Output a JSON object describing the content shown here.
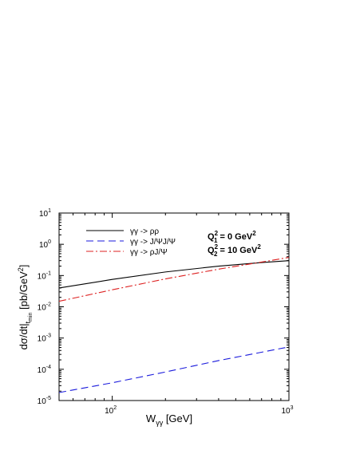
{
  "chart_data": {
    "type": "line",
    "title": "",
    "xscale": "log",
    "yscale": "log",
    "xlim": [
      50,
      1000
    ],
    "ylim": [
      1e-05,
      10
    ],
    "x_ticks": [
      {
        "value": 100,
        "base": "10",
        "exp": "2"
      },
      {
        "value": 1000,
        "base": "10",
        "exp": "3"
      }
    ],
    "y_ticks": [
      {
        "value": 1e-05,
        "base": "10",
        "exp": "-5"
      },
      {
        "value": 0.0001,
        "base": "10",
        "exp": "-4"
      },
      {
        "value": 0.001,
        "base": "10",
        "exp": "-3"
      },
      {
        "value": 0.01,
        "base": "10",
        "exp": "-2"
      },
      {
        "value": 0.1,
        "base": "10",
        "exp": "-1"
      },
      {
        "value": 1,
        "base": "10",
        "exp": "0"
      },
      {
        "value": 10,
        "base": "10",
        "exp": "1"
      }
    ],
    "xlabel": {
      "main": "W",
      "sub": "γγ",
      "unit": " [GeV]"
    },
    "ylabel": {
      "main": "dσ/dt|",
      "sub": "t",
      "subsub": "min",
      "unit": " [pb/GeV",
      "unit_sup": "2",
      "unit_end": "]"
    },
    "legend_placement": "top-left",
    "grid": false,
    "series": [
      {
        "name": "γγ -> ρρ",
        "color": "#000000",
        "dash": "solid",
        "points": [
          [
            50,
            0.04
          ],
          [
            100,
            0.075
          ],
          [
            200,
            0.13
          ],
          [
            400,
            0.2
          ],
          [
            700,
            0.26
          ],
          [
            1000,
            0.3
          ]
        ]
      },
      {
        "name": "γγ -> J/ΨJ/Ψ",
        "color": "#1a1adc",
        "dash": "dashed",
        "points": [
          [
            50,
            1.8e-05
          ],
          [
            100,
            3.7e-05
          ],
          [
            200,
            8.2e-05
          ],
          [
            400,
            0.00019
          ],
          [
            1000,
            0.00052
          ]
        ]
      },
      {
        "name": "γγ -> ρJ/Ψ",
        "color": "#dd2020",
        "dash": "dashdot",
        "points": [
          [
            50,
            0.015
          ],
          [
            100,
            0.035
          ],
          [
            200,
            0.078
          ],
          [
            400,
            0.16
          ],
          [
            700,
            0.27
          ],
          [
            1000,
            0.38
          ]
        ]
      }
    ],
    "annotations": [
      {
        "main": "Q",
        "sup": "2",
        "sub": "1",
        "rest": " = 0 GeV",
        "rest_sup": "2"
      },
      {
        "main": "Q",
        "sup": "2",
        "sub": "2",
        "rest": " = 10 GeV",
        "rest_sup": "2"
      }
    ]
  }
}
